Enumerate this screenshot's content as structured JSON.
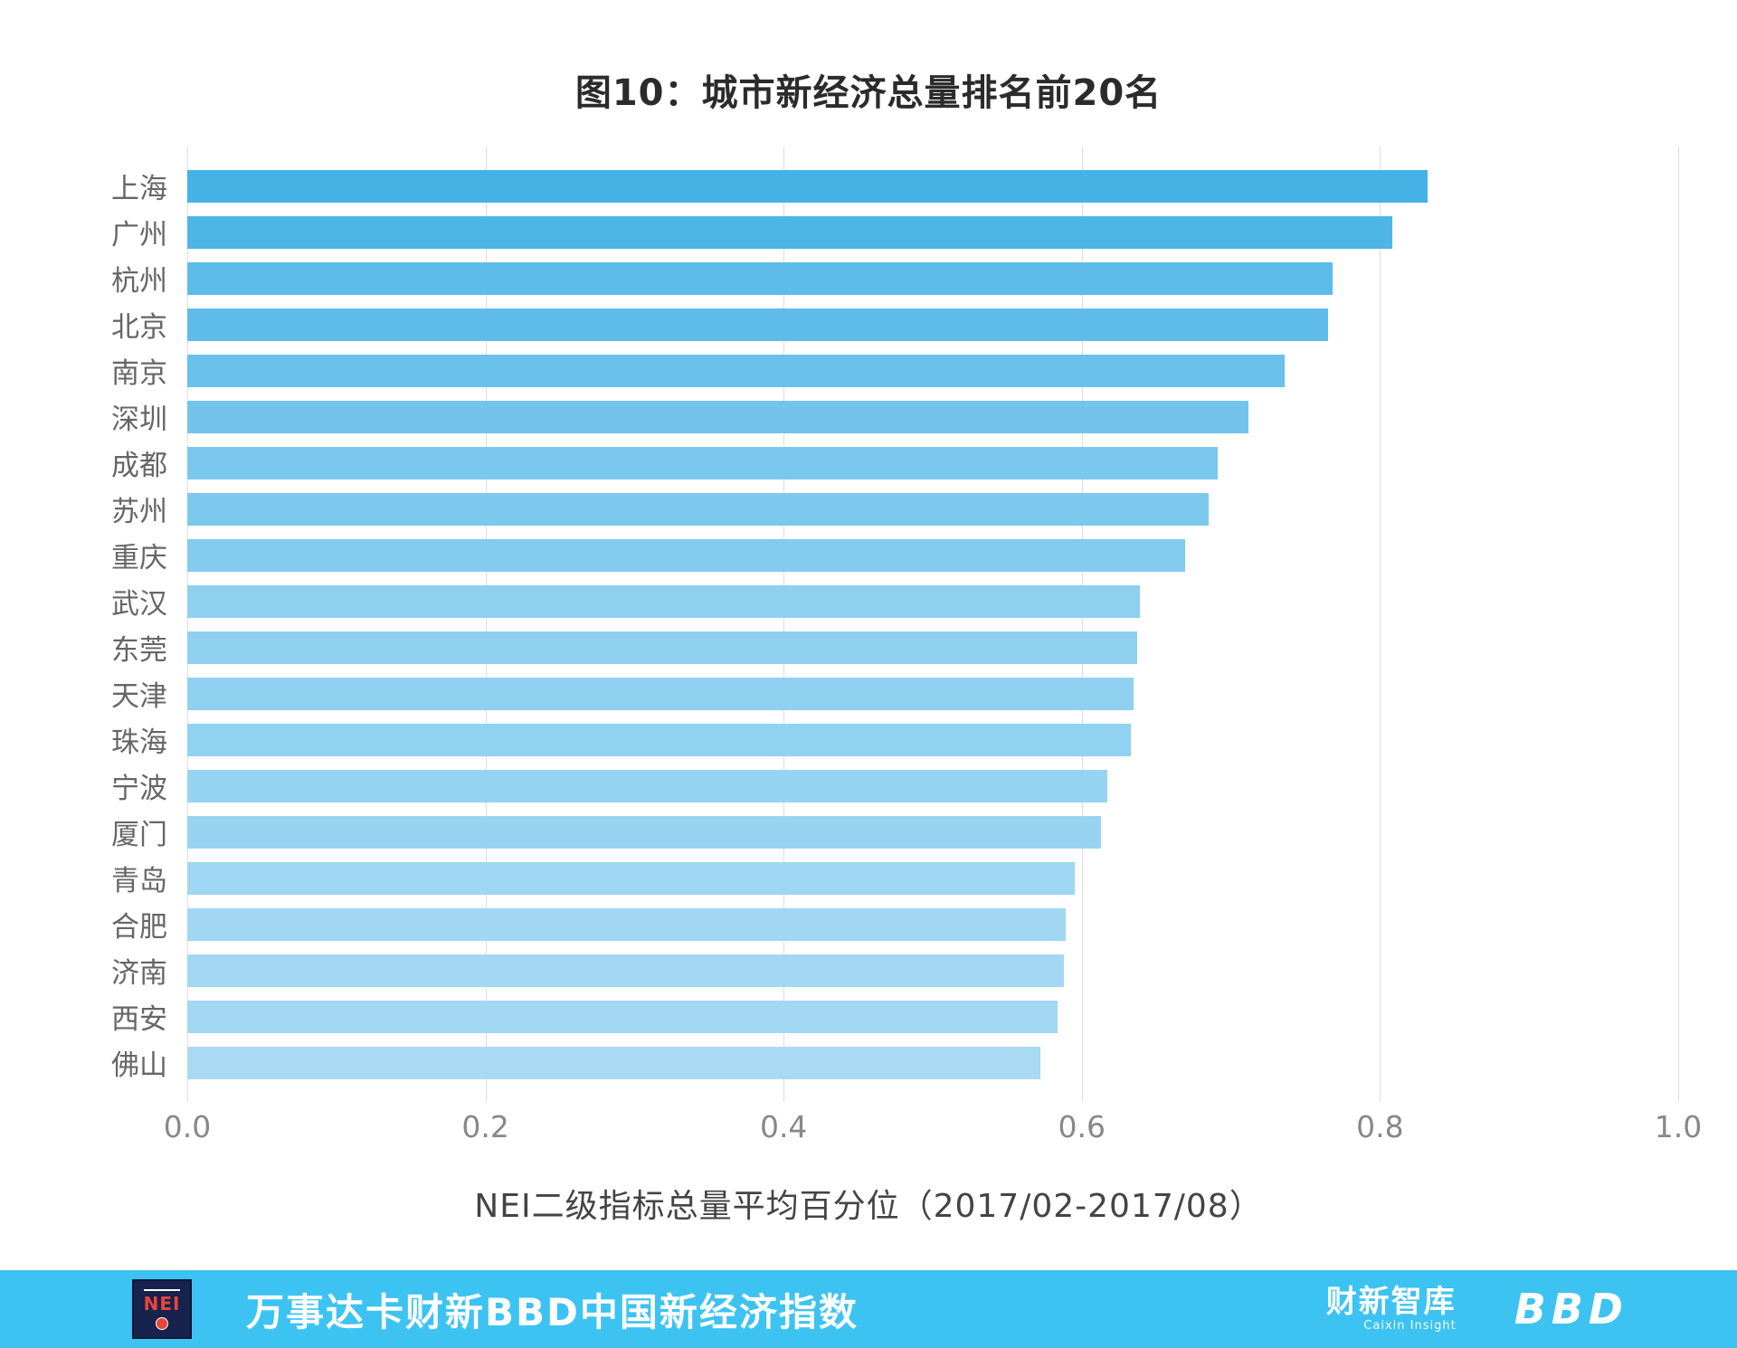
{
  "title": "图10：城市新经济总量排名前20名",
  "chart_data": {
    "type": "bar",
    "orientation": "horizontal",
    "categories": [
      "上海",
      "广州",
      "杭州",
      "北京",
      "南京",
      "深圳",
      "成都",
      "苏州",
      "重庆",
      "武汉",
      "东莞",
      "天津",
      "珠海",
      "宁波",
      "厦门",
      "青岛",
      "合肥",
      "济南",
      "西安",
      "佛山"
    ],
    "values": [
      0.832,
      0.808,
      0.768,
      0.765,
      0.736,
      0.712,
      0.691,
      0.685,
      0.669,
      0.639,
      0.637,
      0.635,
      0.633,
      0.617,
      0.613,
      0.595,
      0.589,
      0.588,
      0.584,
      0.572
    ],
    "title": "图10：城市新经济总量排名前20名",
    "xlabel": "NEI二级指标总量平均百分位（2017/02-2017/08）",
    "ylabel": "",
    "xlim": [
      0,
      1.0
    ],
    "xticks": [
      0.0,
      0.2,
      0.4,
      0.6,
      0.8,
      1.0
    ],
    "grid": "vertical",
    "bar_color_high": "#45b2e6",
    "bar_color_low": "#a8daf4",
    "gridline_color": "#dddddd"
  },
  "footer": {
    "bar_color": "#3cc3f2",
    "logo_text": "NEI",
    "brand_text": "万事达卡财新BBD中国新经济指数",
    "caixin_logo_text": "财新智库",
    "caixin_logo_sub": "Caixin Insight",
    "bbd_logo_text": "BBD"
  }
}
